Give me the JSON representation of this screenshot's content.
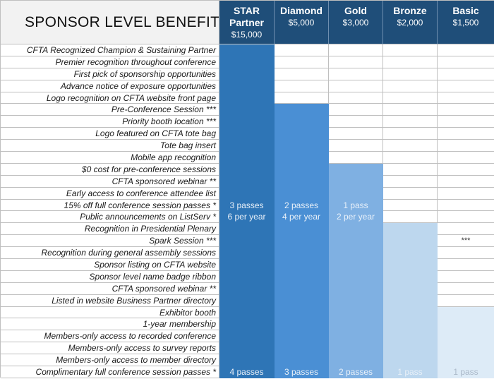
{
  "title": "SPONSOR LEVEL BENEFITS",
  "levels": [
    {
      "id": "star",
      "name_line1": "STAR",
      "name_line2": "Partner",
      "price": "$15,000",
      "color": "#2e75b6"
    },
    {
      "id": "diamond",
      "name_line1": "Diamond",
      "name_line2": "",
      "price": "$5,000",
      "color": "#4a8fd4"
    },
    {
      "id": "gold",
      "name_line1": "Gold",
      "name_line2": "",
      "price": "$3,000",
      "color": "#7fb0e2"
    },
    {
      "id": "bronze",
      "name_line1": "Bronze",
      "name_line2": "",
      "price": "$2,000",
      "color": "#bdd7ee"
    },
    {
      "id": "basic",
      "name_line1": "Basic",
      "name_line2": "",
      "price": "$1,500",
      "color": "#ddebf7"
    }
  ],
  "header_color": "#1f4e79",
  "benefits": [
    "CFTA Recognized Champion & Sustaining Partner",
    "Premier recognition throughout conference",
    "First pick of sponsorship opportunities",
    "Advance notice of exposure opportunities",
    "Logo recognition on CFTA website front page",
    "Pre-Conference Session ***",
    "Priority booth location ***",
    "Logo featured on CFTA tote bag",
    "Tote bag insert",
    "Mobile app recognition",
    "$0 cost for pre-conference sessions",
    "CFTA sponsored webinar **",
    "Early access to conference attendee list",
    "15% off full conference session passes *",
    "Public announcements on ListServ *",
    "Recognition in Presidential Plenary",
    "Spark Session ***",
    "Recognition during general assembly sessions",
    "Sponsor listing on CFTA website",
    "Sponsor level name badge ribbon",
    "CFTA sponsored webinar **",
    "Listed in website Business Partner directory",
    "Exhibitor booth",
    "1-year membership",
    "Members-only access to recorded conference",
    "Members-only access to survey reports",
    "Members-only access to member directory",
    "Complimentary full conference session passes *"
  ],
  "level_start_rows": {
    "star": 0,
    "diamond": 5,
    "gold": 10,
    "bronze": 15,
    "basic": 22
  },
  "cell_values": {
    "13": {
      "star": "3 passes",
      "diamond": "2 passes",
      "gold": "1 pass"
    },
    "14": {
      "star": "6 per year",
      "diamond": "4 per year",
      "gold": "2 per year"
    },
    "16": {
      "basic": "***"
    },
    "27": {
      "star": "4 passes",
      "diamond": "3 passes",
      "gold": "2 passes",
      "bronze": "1 pass",
      "basic": "1 pass"
    }
  }
}
